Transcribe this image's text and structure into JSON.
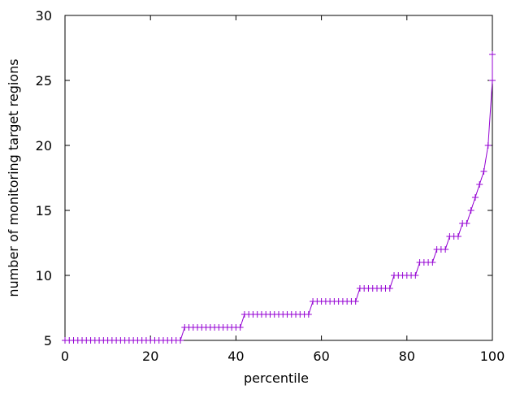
{
  "chart_data": {
    "type": "line",
    "title": "",
    "xlabel": "percentile",
    "ylabel": "number of monitoring target regions",
    "xlim": [
      0,
      100
    ],
    "ylim": [
      5,
      30
    ],
    "xticks": [
      0,
      20,
      40,
      60,
      80,
      100
    ],
    "yticks": [
      5,
      10,
      15,
      20,
      25,
      30
    ],
    "xtick_labels": [
      "0",
      "20",
      "40",
      "60",
      "80",
      "100"
    ],
    "ytick_labels": [
      "5",
      "10",
      "15",
      "20",
      "25",
      "30"
    ],
    "grid": false,
    "legend": "none",
    "series": [
      {
        "color": "#9400d3",
        "marker": "plus",
        "steps": [
          {
            "from": 0,
            "to": 27,
            "y": 5
          },
          {
            "from": 28,
            "to": 41,
            "y": 6
          },
          {
            "from": 42,
            "to": 57,
            "y": 7
          },
          {
            "from": 58,
            "to": 68,
            "y": 8
          },
          {
            "from": 69,
            "to": 76,
            "y": 9
          },
          {
            "from": 77,
            "to": 82,
            "y": 10
          },
          {
            "from": 83,
            "to": 86,
            "y": 11
          },
          {
            "from": 87,
            "to": 89,
            "y": 12
          },
          {
            "from": 90,
            "to": 92,
            "y": 13
          },
          {
            "from": 93,
            "to": 94,
            "y": 14
          },
          {
            "from": 95,
            "to": 95,
            "y": 15
          },
          {
            "from": 96,
            "to": 96,
            "y": 16
          },
          {
            "from": 97,
            "to": 97,
            "y": 17
          },
          {
            "from": 98,
            "to": 98,
            "y": 18
          },
          {
            "from": 99,
            "to": 99,
            "y": 20
          },
          {
            "from": 100,
            "to": 100,
            "y": 25
          }
        ],
        "extra_points": [
          [
            100,
            27
          ]
        ]
      }
    ]
  }
}
